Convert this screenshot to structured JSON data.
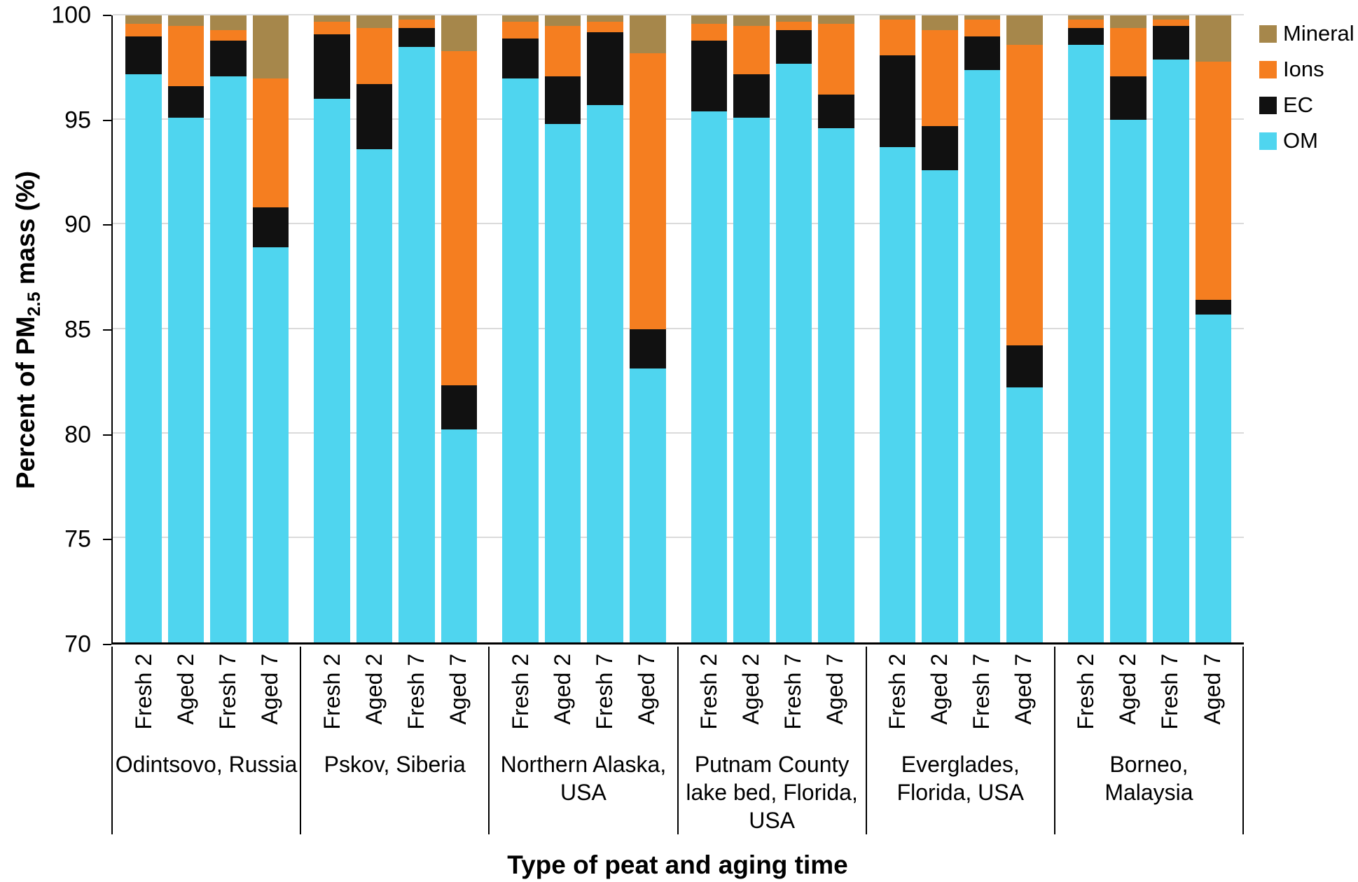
{
  "chart_data": {
    "type": "bar",
    "stacked": true,
    "xlabel": "Type of peat and aging time",
    "ylabel_parts": {
      "pre": "Percent of PM",
      "sub": "2.5",
      "post": " mass (%)"
    },
    "ylim": [
      70,
      100
    ],
    "yticks": [
      70,
      75,
      80,
      85,
      90,
      95,
      100
    ],
    "series_order": [
      "OM",
      "EC",
      "Ions",
      "Mineral"
    ],
    "colors": {
      "OM": "#4FD5EF",
      "EC": "#111111",
      "Ions": "#F57E20",
      "Mineral": "#A6874B"
    },
    "legend": [
      "Mineral",
      "Ions",
      "EC",
      "OM"
    ],
    "legend_position": "top-right",
    "grid": true,
    "groups": [
      {
        "label": "Odintsovo, Russia",
        "bars": [
          {
            "label": "Fresh 2",
            "values": {
              "OM": 97.2,
              "EC": 1.8,
              "Ions": 0.6,
              "Mineral": 0.4
            }
          },
          {
            "label": "Aged 2",
            "values": {
              "OM": 95.1,
              "EC": 1.5,
              "Ions": 2.9,
              "Mineral": 0.5
            }
          },
          {
            "label": "Fresh 7",
            "values": {
              "OM": 97.1,
              "EC": 1.7,
              "Ions": 0.5,
              "Mineral": 0.7
            }
          },
          {
            "label": "Aged 7",
            "values": {
              "OM": 88.9,
              "EC": 1.9,
              "Ions": 6.2,
              "Mineral": 3.0
            }
          }
        ]
      },
      {
        "label": "Pskov, Siberia",
        "bars": [
          {
            "label": "Fresh 2",
            "values": {
              "OM": 96.0,
              "EC": 3.1,
              "Ions": 0.6,
              "Mineral": 0.3
            }
          },
          {
            "label": "Aged 2",
            "values": {
              "OM": 93.6,
              "EC": 3.1,
              "Ions": 2.7,
              "Mineral": 0.6
            }
          },
          {
            "label": "Fresh 7",
            "values": {
              "OM": 98.5,
              "EC": 0.9,
              "Ions": 0.4,
              "Mineral": 0.2
            }
          },
          {
            "label": "Aged 7",
            "values": {
              "OM": 80.2,
              "EC": 2.1,
              "Ions": 16.0,
              "Mineral": 1.7
            }
          }
        ]
      },
      {
        "label": "Northern Alaska,\nUSA",
        "bars": [
          {
            "label": "Fresh 2",
            "values": {
              "OM": 97.0,
              "EC": 1.9,
              "Ions": 0.8,
              "Mineral": 0.3
            }
          },
          {
            "label": "Aged 2",
            "values": {
              "OM": 94.8,
              "EC": 2.3,
              "Ions": 2.4,
              "Mineral": 0.5
            }
          },
          {
            "label": "Fresh 7",
            "values": {
              "OM": 95.7,
              "EC": 3.5,
              "Ions": 0.5,
              "Mineral": 0.3
            }
          },
          {
            "label": "Aged 7",
            "values": {
              "OM": 83.1,
              "EC": 1.9,
              "Ions": 13.2,
              "Mineral": 1.8
            }
          }
        ]
      },
      {
        "label": "Putnam County\nlake bed, Florida,\nUSA",
        "bars": [
          {
            "label": "Fresh 2",
            "values": {
              "OM": 95.4,
              "EC": 3.4,
              "Ions": 0.8,
              "Mineral": 0.4
            }
          },
          {
            "label": "Aged 2",
            "values": {
              "OM": 95.1,
              "EC": 2.1,
              "Ions": 2.3,
              "Mineral": 0.5
            }
          },
          {
            "label": "Fresh 7",
            "values": {
              "OM": 97.7,
              "EC": 1.6,
              "Ions": 0.4,
              "Mineral": 0.3
            }
          },
          {
            "label": "Aged 7",
            "values": {
              "OM": 94.6,
              "EC": 1.6,
              "Ions": 3.4,
              "Mineral": 0.4
            }
          }
        ]
      },
      {
        "label": "Everglades,\nFlorida, USA",
        "bars": [
          {
            "label": "Fresh 2",
            "values": {
              "OM": 93.7,
              "EC": 4.4,
              "Ions": 1.7,
              "Mineral": 0.2
            }
          },
          {
            "label": "Aged 2",
            "values": {
              "OM": 92.6,
              "EC": 2.1,
              "Ions": 4.6,
              "Mineral": 0.7
            }
          },
          {
            "label": "Fresh 7",
            "values": {
              "OM": 97.4,
              "EC": 1.6,
              "Ions": 0.8,
              "Mineral": 0.2
            }
          },
          {
            "label": "Aged 7",
            "values": {
              "OM": 82.2,
              "EC": 2.0,
              "Ions": 14.4,
              "Mineral": 1.4
            }
          }
        ]
      },
      {
        "label": "Borneo,\nMalaysia",
        "bars": [
          {
            "label": "Fresh 2",
            "values": {
              "OM": 98.6,
              "EC": 0.8,
              "Ions": 0.4,
              "Mineral": 0.2
            }
          },
          {
            "label": "Aged 2",
            "values": {
              "OM": 95.0,
              "EC": 2.1,
              "Ions": 2.3,
              "Mineral": 0.6
            }
          },
          {
            "label": "Fresh 7",
            "values": {
              "OM": 97.9,
              "EC": 1.6,
              "Ions": 0.3,
              "Mineral": 0.2
            }
          },
          {
            "label": "Aged 7",
            "values": {
              "OM": 85.7,
              "EC": 0.7,
              "Ions": 11.4,
              "Mineral": 2.2
            }
          }
        ]
      }
    ]
  }
}
